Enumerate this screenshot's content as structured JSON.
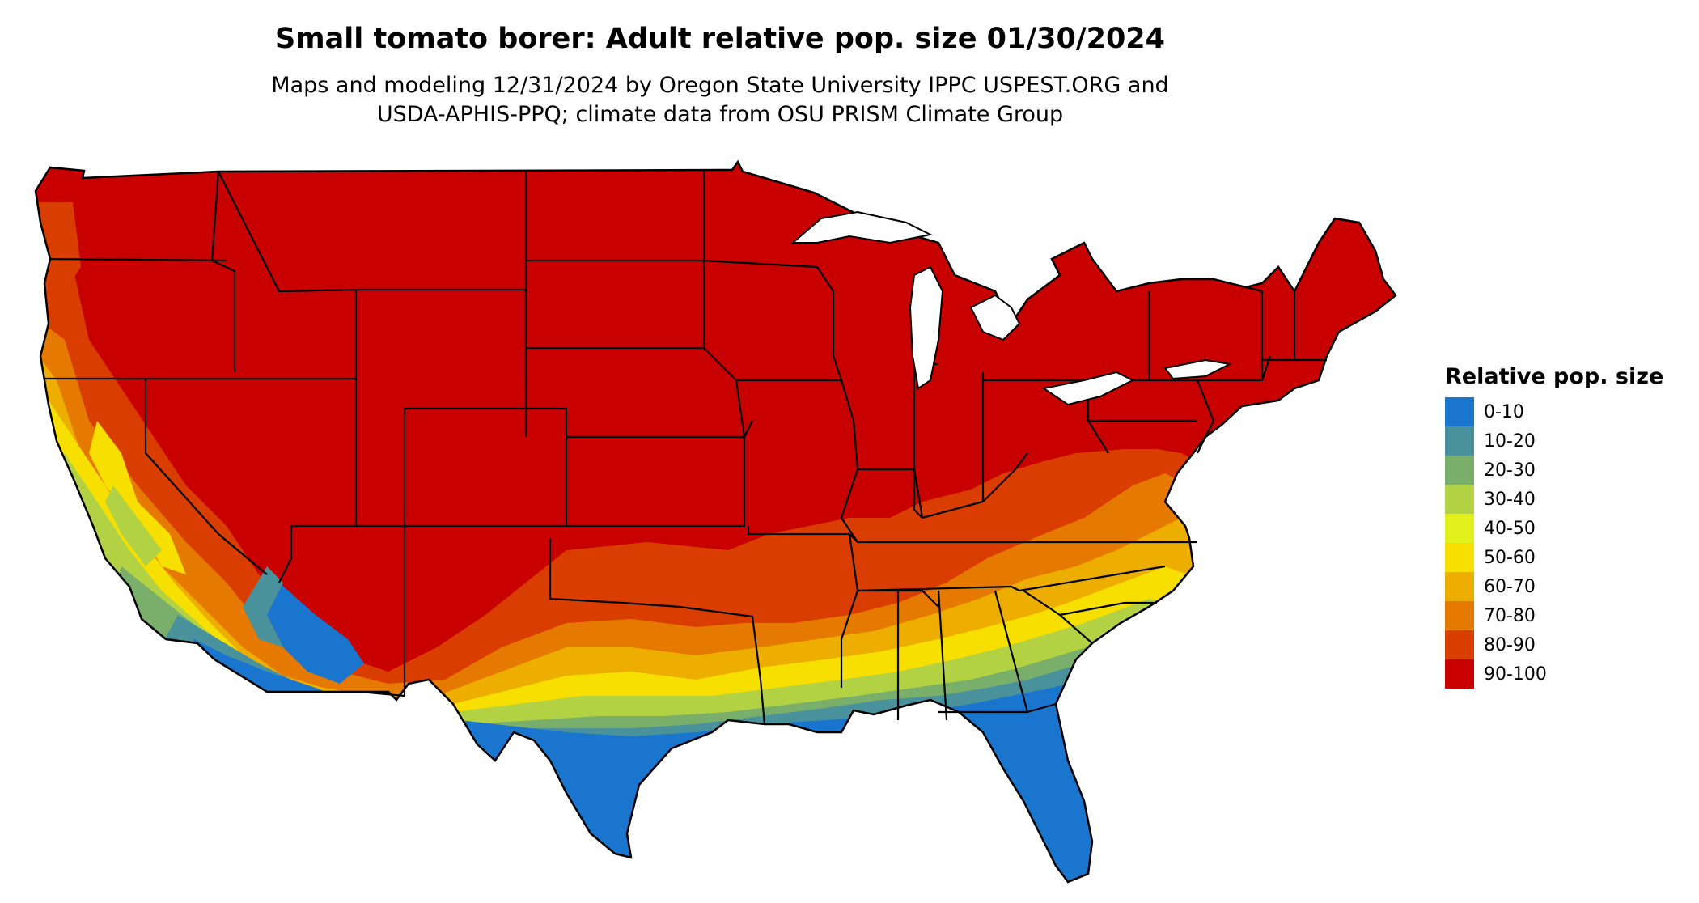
{
  "title": "Small tomato borer: Adult relative pop. size 01/30/2024",
  "subtitle_line1": "Maps and modeling 12/31/2024 by Oregon State University IPPC USPEST.ORG and",
  "subtitle_line2": "USDA-APHIS-PPQ; climate data from OSU PRISM Climate Group",
  "legend": {
    "title": "Relative pop. size",
    "items": [
      {
        "label": "0-10",
        "color": "#1a75cf"
      },
      {
        "label": "10-20",
        "color": "#4a929b"
      },
      {
        "label": "20-30",
        "color": "#7aaf6b"
      },
      {
        "label": "30-40",
        "color": "#b3d243"
      },
      {
        "label": "40-50",
        "color": "#e2f01b"
      },
      {
        "label": "50-60",
        "color": "#f7e000"
      },
      {
        "label": "60-70",
        "color": "#eeae00"
      },
      {
        "label": "70-80",
        "color": "#e67a00"
      },
      {
        "label": "80-90",
        "color": "#d93d00"
      },
      {
        "label": "90-100",
        "color": "#c90000"
      }
    ]
  }
}
